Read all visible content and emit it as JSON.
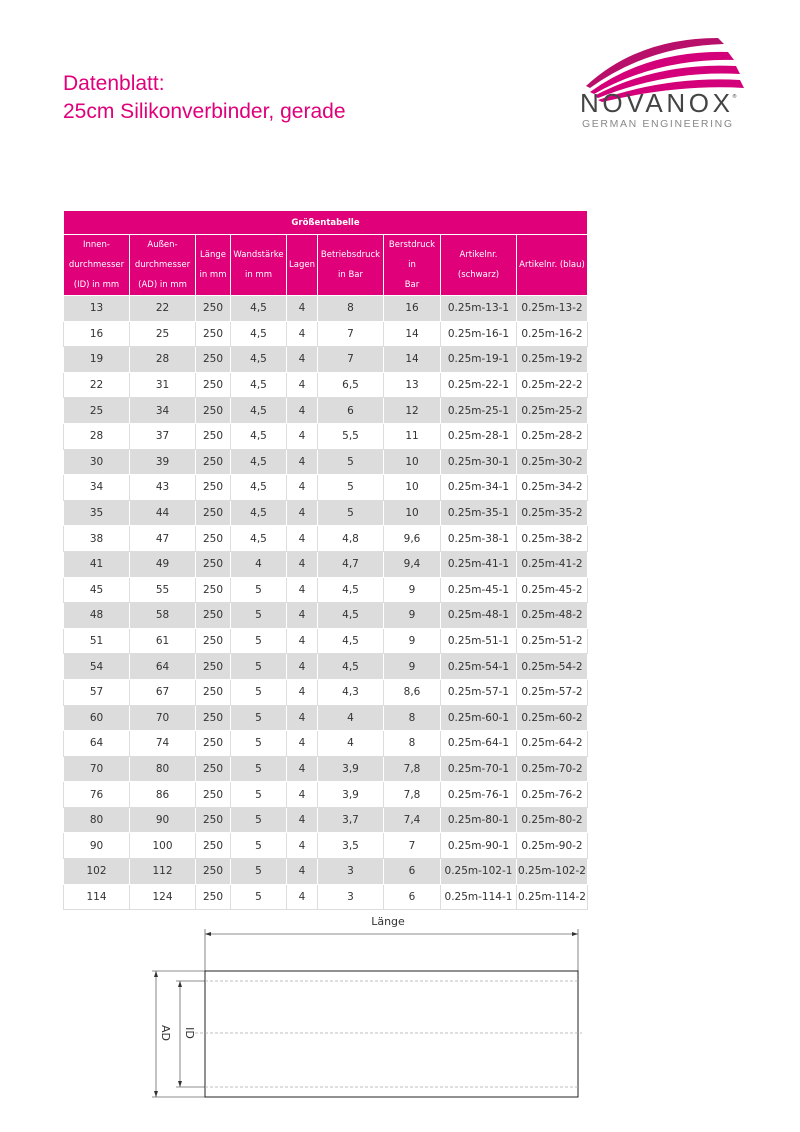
{
  "header": {
    "title_line1": "Datenblatt:",
    "title_line2": "25cm Silikonverbinder, gerade"
  },
  "logo": {
    "brand": "NOVANOX",
    "tagline": "GERMAN ENGINEERING",
    "registered": "®"
  },
  "colors": {
    "accent": "#e0007a",
    "row_alt": "#dcdcdc"
  },
  "table": {
    "caption": "Größentabelle",
    "columns": [
      "Innen-\ndurchmesser\n(ID) in mm",
      "Außen-\ndurchmesser\n(AD) in mm",
      "Länge\nin mm",
      "Wandstärke\nin mm",
      "Lagen",
      "Betriebsdruck\nin Bar",
      "Berstdruck in\nBar",
      "Artikelnr.\n(schwarz)",
      "Artikelnr. (blau)"
    ],
    "rows": [
      [
        "13",
        "22",
        "250",
        "4,5",
        "4",
        "8",
        "16",
        "0.25m-13-1",
        "0.25m-13-2"
      ],
      [
        "16",
        "25",
        "250",
        "4,5",
        "4",
        "7",
        "14",
        "0.25m-16-1",
        "0.25m-16-2"
      ],
      [
        "19",
        "28",
        "250",
        "4,5",
        "4",
        "7",
        "14",
        "0.25m-19-1",
        "0.25m-19-2"
      ],
      [
        "22",
        "31",
        "250",
        "4,5",
        "4",
        "6,5",
        "13",
        "0.25m-22-1",
        "0.25m-22-2"
      ],
      [
        "25",
        "34",
        "250",
        "4,5",
        "4",
        "6",
        "12",
        "0.25m-25-1",
        "0.25m-25-2"
      ],
      [
        "28",
        "37",
        "250",
        "4,5",
        "4",
        "5,5",
        "11",
        "0.25m-28-1",
        "0.25m-28-2"
      ],
      [
        "30",
        "39",
        "250",
        "4,5",
        "4",
        "5",
        "10",
        "0.25m-30-1",
        "0.25m-30-2"
      ],
      [
        "34",
        "43",
        "250",
        "4,5",
        "4",
        "5",
        "10",
        "0.25m-34-1",
        "0.25m-34-2"
      ],
      [
        "35",
        "44",
        "250",
        "4,5",
        "4",
        "5",
        "10",
        "0.25m-35-1",
        "0.25m-35-2"
      ],
      [
        "38",
        "47",
        "250",
        "4,5",
        "4",
        "4,8",
        "9,6",
        "0.25m-38-1",
        "0.25m-38-2"
      ],
      [
        "41",
        "49",
        "250",
        "4",
        "4",
        "4,7",
        "9,4",
        "0.25m-41-1",
        "0.25m-41-2"
      ],
      [
        "45",
        "55",
        "250",
        "5",
        "4",
        "4,5",
        "9",
        "0.25m-45-1",
        "0.25m-45-2"
      ],
      [
        "48",
        "58",
        "250",
        "5",
        "4",
        "4,5",
        "9",
        "0.25m-48-1",
        "0.25m-48-2"
      ],
      [
        "51",
        "61",
        "250",
        "5",
        "4",
        "4,5",
        "9",
        "0.25m-51-1",
        "0.25m-51-2"
      ],
      [
        "54",
        "64",
        "250",
        "5",
        "4",
        "4,5",
        "9",
        "0.25m-54-1",
        "0.25m-54-2"
      ],
      [
        "57",
        "67",
        "250",
        "5",
        "4",
        "4,3",
        "8,6",
        "0.25m-57-1",
        "0.25m-57-2"
      ],
      [
        "60",
        "70",
        "250",
        "5",
        "4",
        "4",
        "8",
        "0.25m-60-1",
        "0.25m-60-2"
      ],
      [
        "64",
        "74",
        "250",
        "5",
        "4",
        "4",
        "8",
        "0.25m-64-1",
        "0.25m-64-2"
      ],
      [
        "70",
        "80",
        "250",
        "5",
        "4",
        "3,9",
        "7,8",
        "0.25m-70-1",
        "0.25m-70-2"
      ],
      [
        "76",
        "86",
        "250",
        "5",
        "4",
        "3,9",
        "7,8",
        "0.25m-76-1",
        "0.25m-76-2"
      ],
      [
        "80",
        "90",
        "250",
        "5",
        "4",
        "3,7",
        "7,4",
        "0.25m-80-1",
        "0.25m-80-2"
      ],
      [
        "90",
        "100",
        "250",
        "5",
        "4",
        "3,5",
        "7",
        "0.25m-90-1",
        "0.25m-90-2"
      ],
      [
        "102",
        "112",
        "250",
        "5",
        "4",
        "3",
        "6",
        "0.25m-102-1",
        "0.25m-102-2"
      ],
      [
        "114",
        "124",
        "250",
        "5",
        "4",
        "3",
        "6",
        "0.25m-114-1",
        "0.25m-114-2"
      ]
    ]
  },
  "diagram": {
    "length_label": "Länge",
    "outer_label": "AD",
    "inner_label": "ID"
  }
}
